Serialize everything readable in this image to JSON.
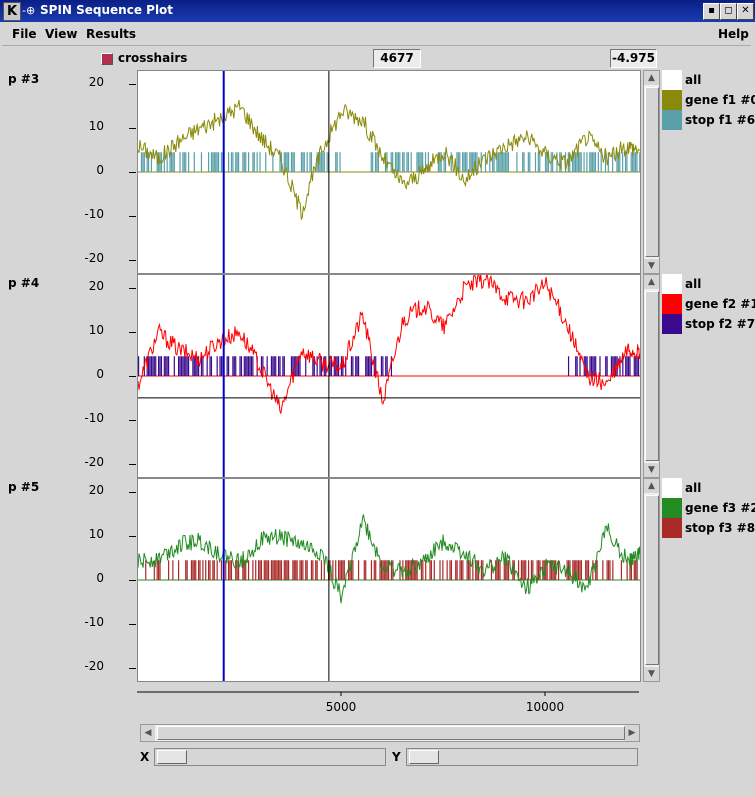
{
  "window": {
    "title": "SPIN Sequence Plot",
    "icon_name": "k-icon"
  },
  "menubar": {
    "file": "File",
    "view": "View",
    "results": "Results",
    "help": "Help"
  },
  "toolbar": {
    "crosshairs_label": "crosshairs",
    "crosshairs_checked": true,
    "x_readout": "4677",
    "y_readout": "-4.975"
  },
  "colors": {
    "cursor_line": "#0000cc",
    "gene_f1": "#8a8a0a",
    "stop_f1": "#5aa0a8",
    "gene_f2": "#ff0000",
    "stop_f2": "#3b0a8c",
    "gene_f3": "#228b22",
    "stop_f3": "#aa2a2a",
    "all": "#ffffff"
  },
  "panels": [
    {
      "id": "p3",
      "label": "p #3",
      "ticks": [
        "20",
        "10",
        "0",
        "-10",
        "-20"
      ],
      "legend": [
        {
          "label": "all",
          "color": "#ffffff"
        },
        {
          "label": "gene f1 #0",
          "color": "#8a8a0a"
        },
        {
          "label": "stop f1 #6",
          "color": "#5aa0a8"
        }
      ]
    },
    {
      "id": "p4",
      "label": "p #4",
      "ticks": [
        "20",
        "10",
        "0",
        "-10",
        "-20"
      ],
      "legend": [
        {
          "label": "all",
          "color": "#ffffff"
        },
        {
          "label": "gene f2 #1",
          "color": "#ff0000"
        },
        {
          "label": "stop f2 #7",
          "color": "#3b0a8c"
        }
      ]
    },
    {
      "id": "p5",
      "label": "p #5",
      "ticks": [
        "20",
        "10",
        "0",
        "-10",
        "-20"
      ],
      "legend": [
        {
          "label": "all",
          "color": "#ffffff"
        },
        {
          "label": "gene f3 #2",
          "color": "#228b22"
        },
        {
          "label": "stop f3 #8",
          "color": "#aa2a2a"
        }
      ]
    }
  ],
  "x_axis": {
    "ticks": [
      "5000",
      "10000"
    ]
  },
  "sliders": {
    "x_label": "X",
    "y_label": "Y"
  },
  "chart_data": {
    "type": "line",
    "x_range": [
      0,
      12300
    ],
    "ylim": [
      -23,
      23
    ],
    "cursor_x": 2100,
    "crosshair_x": 4677,
    "crosshair_y_p4": -4.975,
    "series": [
      {
        "name": "gene f1 #0",
        "panel": 0,
        "x": [
          0,
          500,
          1000,
          1500,
          2000,
          2500,
          3000,
          3500,
          4000,
          4500,
          5000,
          5500,
          6000,
          6500,
          7000,
          7500,
          8000,
          8500,
          9000,
          9500,
          10000,
          10500,
          11000,
          11500,
          12000,
          12300
        ],
        "y": [
          6,
          3,
          7,
          10,
          12,
          15,
          8,
          3,
          -9,
          5,
          14,
          12,
          3,
          -3,
          0,
          5,
          -2,
          3,
          6,
          8,
          4,
          2,
          8,
          3,
          6,
          5
        ]
      },
      {
        "name": "gene f2 #1",
        "panel": 1,
        "x": [
          0,
          500,
          1000,
          1500,
          2000,
          2500,
          3000,
          3500,
          4000,
          4500,
          5000,
          5500,
          6000,
          6500,
          7000,
          7500,
          8000,
          8500,
          9000,
          9500,
          10000,
          10500,
          11000,
          11500,
          12000,
          12300
        ],
        "y": [
          -2,
          10,
          6,
          4,
          8,
          10,
          2,
          -8,
          6,
          3,
          2,
          14,
          -6,
          13,
          16,
          11,
          20,
          22,
          18,
          17,
          21,
          12,
          0,
          -2,
          6,
          5
        ]
      },
      {
        "name": "gene f3 #2",
        "panel": 2,
        "x": [
          0,
          500,
          1000,
          1500,
          2000,
          2500,
          3000,
          3500,
          4000,
          4500,
          5000,
          5500,
          6000,
          6500,
          7000,
          7500,
          8000,
          8500,
          9000,
          9500,
          10000,
          10500,
          11000,
          11500,
          12000,
          12300
        ],
        "y": [
          4,
          5,
          8,
          9,
          6,
          4,
          9,
          10,
          8,
          6,
          -4,
          14,
          3,
          2,
          4,
          9,
          6,
          2,
          5,
          -2,
          3,
          2,
          -2,
          12,
          4,
          6
        ]
      }
    ]
  }
}
